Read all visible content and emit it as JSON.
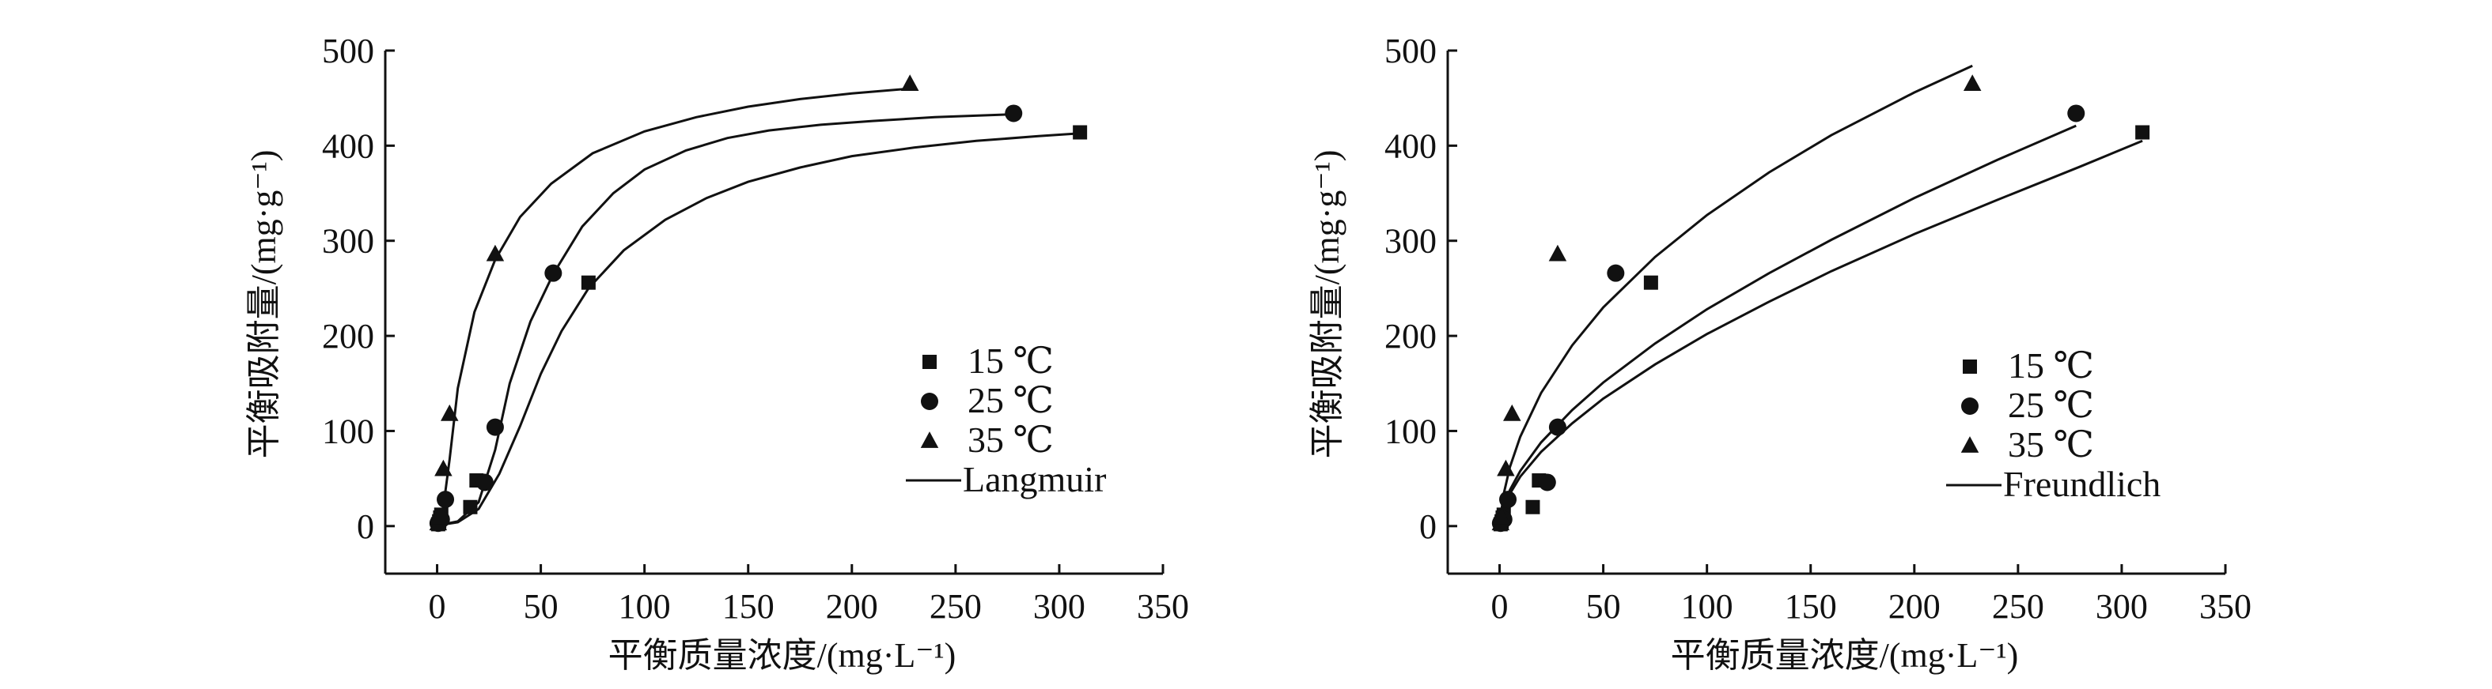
{
  "chart_data": [
    {
      "type": "scatter",
      "panel": "left",
      "xlabel": "平衡质量浓度/(mg·L⁻¹)",
      "ylabel": "平衡吸附量/(mg·g⁻¹)",
      "xlim": [
        -25,
        350
      ],
      "ylim": [
        -50,
        500
      ],
      "xticks": [
        0,
        50,
        100,
        150,
        200,
        250,
        300,
        350
      ],
      "yticks": [
        0,
        100,
        200,
        300,
        400,
        500
      ],
      "legend_position": "lower-right",
      "fit_label": "Langmuir",
      "series": [
        {
          "name": "15 ℃",
          "marker": "square",
          "points": [
            [
              0.5,
              2
            ],
            [
              1,
              5
            ],
            [
              1.5,
              9
            ],
            [
              2,
              12
            ],
            [
              16,
              20
            ],
            [
              19,
              48
            ],
            [
              73,
              256
            ],
            [
              310,
              414
            ]
          ],
          "fit": [
            [
              1,
              1
            ],
            [
              10,
              4
            ],
            [
              20,
              18
            ],
            [
              30,
              55
            ],
            [
              40,
              105
            ],
            [
              50,
              160
            ],
            [
              60,
              205
            ],
            [
              73,
              250
            ],
            [
              90,
              290
            ],
            [
              110,
              322
            ],
            [
              130,
              345
            ],
            [
              150,
              362
            ],
            [
              175,
              377
            ],
            [
              200,
              389
            ],
            [
              230,
              398
            ],
            [
              260,
              405
            ],
            [
              290,
              410
            ],
            [
              310,
              413
            ]
          ]
        },
        {
          "name": "25 ℃",
          "marker": "circle",
          "points": [
            [
              0.5,
              3
            ],
            [
              2,
              7
            ],
            [
              4,
              28
            ],
            [
              23,
              46
            ],
            [
              28,
              104
            ],
            [
              56,
              266
            ],
            [
              278,
              434
            ]
          ],
          "fit": [
            [
              1,
              1
            ],
            [
              10,
              5
            ],
            [
              20,
              25
            ],
            [
              28,
              80
            ],
            [
              35,
              150
            ],
            [
              45,
              215
            ],
            [
              56,
              265
            ],
            [
              70,
              315
            ],
            [
              85,
              350
            ],
            [
              100,
              375
            ],
            [
              120,
              395
            ],
            [
              140,
              408
            ],
            [
              160,
              416
            ],
            [
              185,
              422
            ],
            [
              210,
              426
            ],
            [
              240,
              430
            ],
            [
              278,
              433
            ]
          ]
        },
        {
          "name": "35 ℃",
          "marker": "triangle",
          "points": [
            [
              0.5,
              3
            ],
            [
              1,
              9
            ],
            [
              3,
              60
            ],
            [
              6,
              118
            ],
            [
              28,
              286
            ],
            [
              228,
              465
            ]
          ],
          "fit": [
            [
              0.5,
              1
            ],
            [
              3,
              20
            ],
            [
              6,
              70
            ],
            [
              10,
              145
            ],
            [
              18,
              225
            ],
            [
              28,
              280
            ],
            [
              40,
              325
            ],
            [
              55,
              360
            ],
            [
              75,
              392
            ],
            [
              100,
              415
            ],
            [
              125,
              430
            ],
            [
              150,
              441
            ],
            [
              175,
              449
            ],
            [
              200,
              455
            ],
            [
              228,
              460
            ]
          ]
        }
      ]
    },
    {
      "type": "scatter",
      "panel": "right",
      "xlabel": "平衡质量浓度/(mg·L⁻¹)",
      "ylabel": "平衡吸附量/(mg·g⁻¹)",
      "xlim": [
        -25,
        350
      ],
      "ylim": [
        -50,
        500
      ],
      "xticks": [
        0,
        50,
        100,
        150,
        200,
        250,
        300,
        350
      ],
      "yticks": [
        0,
        100,
        200,
        300,
        400,
        500
      ],
      "legend_position": "lower-right",
      "fit_label": "Freundlich",
      "series": [
        {
          "name": "15 ℃",
          "marker": "square",
          "points": [
            [
              0.5,
              2
            ],
            [
              1,
              5
            ],
            [
              1.5,
              9
            ],
            [
              2,
              12
            ],
            [
              16,
              20
            ],
            [
              19,
              48
            ],
            [
              73,
              256
            ],
            [
              310,
              414
            ]
          ],
          "fit": [
            [
              0.5,
              5
            ],
            [
              2,
              18
            ],
            [
              5,
              34
            ],
            [
              10,
              52
            ],
            [
              20,
              78
            ],
            [
              35,
              108
            ],
            [
              50,
              134
            ],
            [
              75,
              170
            ],
            [
              100,
              202
            ],
            [
              130,
              236
            ],
            [
              160,
              268
            ],
            [
              200,
              307
            ],
            [
              240,
              343
            ],
            [
              280,
              378
            ],
            [
              310,
              405
            ]
          ]
        },
        {
          "name": "25 ℃",
          "marker": "circle",
          "points": [
            [
              0.5,
              3
            ],
            [
              2,
              7
            ],
            [
              4,
              28
            ],
            [
              23,
              46
            ],
            [
              28,
              104
            ],
            [
              56,
              266
            ],
            [
              278,
              434
            ]
          ],
          "fit": [
            [
              0.5,
              6
            ],
            [
              2,
              20
            ],
            [
              5,
              38
            ],
            [
              10,
              58
            ],
            [
              20,
              88
            ],
            [
              35,
              122
            ],
            [
              50,
              151
            ],
            [
              75,
              192
            ],
            [
              100,
              228
            ],
            [
              130,
              266
            ],
            [
              160,
              301
            ],
            [
              200,
              345
            ],
            [
              240,
              385
            ],
            [
              278,
              421
            ]
          ]
        },
        {
          "name": "35 ℃",
          "marker": "triangle",
          "points": [
            [
              0.5,
              3
            ],
            [
              1,
              9
            ],
            [
              3,
              60
            ],
            [
              6,
              118
            ],
            [
              28,
              286
            ],
            [
              228,
              465
            ]
          ],
          "fit": [
            [
              0.5,
              10
            ],
            [
              2,
              34
            ],
            [
              5,
              62
            ],
            [
              10,
              94
            ],
            [
              20,
              140
            ],
            [
              35,
              190
            ],
            [
              50,
              230
            ],
            [
              75,
              283
            ],
            [
              100,
              327
            ],
            [
              130,
              372
            ],
            [
              160,
              411
            ],
            [
              200,
              456
            ],
            [
              228,
              484
            ]
          ]
        }
      ]
    }
  ]
}
